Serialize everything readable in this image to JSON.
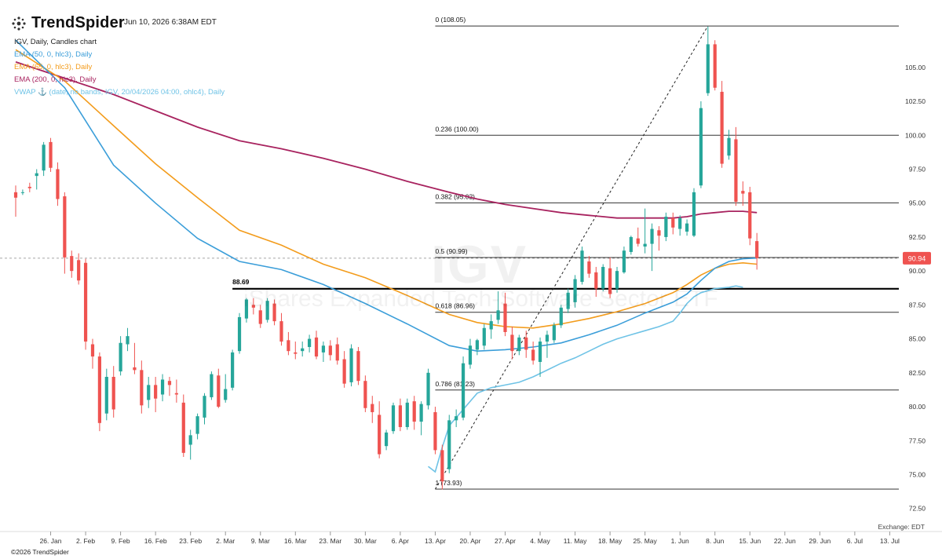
{
  "header": {
    "brand": "TrendSpider",
    "datetime": "Jun 10, 2026 6:38AM EDT"
  },
  "legend": {
    "title": "IGV, Daily, Candles chart",
    "items": [
      {
        "label": "EMA (50, 0, hlc3), Daily",
        "color": "#3b9ed9"
      },
      {
        "label": "EMA (65, 0, hlc3), Daily",
        "color": "#f39c1c"
      },
      {
        "label": "EMA (200, 0, hlc3), Daily",
        "color": "#a8235f"
      },
      {
        "label": "VWAP ⚓ (date, no bands, IGV, 20/04/2026 04:00, ohlc4), Daily",
        "color": "#6fc3e6"
      }
    ]
  },
  "watermark": {
    "ticker": "IGV",
    "name": "iShares Expanded Tech-Software Sector ETF"
  },
  "footer": {
    "copyright": "©2026 TrendSpider",
    "exchange": "Exchange: EDT"
  },
  "colors": {
    "up": "#26a69a",
    "down": "#ef5350",
    "ema50": "#3b9ed9",
    "ema65": "#f39c1c",
    "ema200": "#a8235f",
    "vwap": "#6fc3e6",
    "price_tag": "#ef5350"
  },
  "chart_data": {
    "type": "candlestick",
    "ylim": [
      71.5,
      109.5
    ],
    "y_ticks": [
      72.5,
      75.0,
      77.5,
      80.0,
      82.5,
      85.0,
      87.5,
      90.0,
      92.5,
      95.0,
      97.5,
      100.0,
      102.5,
      105.0
    ],
    "y_tick_labels": [
      "72.50",
      "75.00",
      "77.50",
      "80.00",
      "82.50",
      "85.00",
      "87.50",
      "90.00",
      "92.50",
      "95.00",
      "97.50",
      "100.00",
      "102.50",
      "105.00"
    ],
    "x_ticks": [
      {
        "label": "26. Jan",
        "t": 7
      },
      {
        "label": "2. Feb",
        "t": 12
      },
      {
        "label": "9. Feb",
        "t": 17
      },
      {
        "label": "16. Feb",
        "t": 22
      },
      {
        "label": "23. Feb",
        "t": 27
      },
      {
        "label": "2. Mar",
        "t": 32
      },
      {
        "label": "9. Mar",
        "t": 37
      },
      {
        "label": "16. Mar",
        "t": 42
      },
      {
        "label": "23. Mar",
        "t": 47
      },
      {
        "label": "30. Mar",
        "t": 52
      },
      {
        "label": "6. Apr",
        "t": 57
      },
      {
        "label": "13. Apr",
        "t": 62
      },
      {
        "label": "20. Apr",
        "t": 67
      },
      {
        "label": "27. Apr",
        "t": 72
      },
      {
        "label": "4. May",
        "t": 77
      },
      {
        "label": "11. May",
        "t": 82
      },
      {
        "label": "18. May",
        "t": 87
      },
      {
        "label": "25. May",
        "t": 92
      },
      {
        "label": "1. Jun",
        "t": 97
      },
      {
        "label": "8. Jun",
        "t": 102
      },
      {
        "label": "15. Jun",
        "t": 107
      },
      {
        "label": "22. Jun",
        "t": 112
      },
      {
        "label": "29. Jun",
        "t": 117
      },
      {
        "label": "6. Jul",
        "t": 122
      },
      {
        "label": "13. Jul",
        "t": 127
      }
    ],
    "t_range": [
      2,
      128.3
    ],
    "candles": [
      [
        2,
        95.8,
        96.3,
        94.0,
        95.4
      ],
      [
        3,
        95.8,
        96.0,
        95.6,
        95.8
      ],
      [
        4,
        96.2,
        96.5,
        95.8,
        96.1
      ],
      [
        5,
        97.0,
        97.5,
        96.0,
        97.2
      ],
      [
        6,
        97.4,
        99.5,
        97.0,
        99.3
      ],
      [
        7,
        99.5,
        99.8,
        97.3,
        97.6
      ],
      [
        8,
        97.5,
        98.0,
        94.8,
        95.3
      ],
      [
        9,
        95.5,
        95.8,
        89.8,
        91.0
      ],
      [
        10,
        91.1,
        91.5,
        89.5,
        90.0
      ],
      [
        11,
        90.8,
        91.3,
        89.0,
        89.3
      ],
      [
        12,
        90.6,
        90.9,
        84.2,
        84.8
      ],
      [
        13,
        84.6,
        85.0,
        82.8,
        83.7
      ],
      [
        14,
        83.7,
        84.0,
        78.2,
        78.8
      ],
      [
        15,
        79.5,
        82.8,
        79.0,
        82.2
      ],
      [
        16,
        82.2,
        83.0,
        79.2,
        79.8
      ],
      [
        17,
        82.6,
        85.2,
        82.3,
        84.7
      ],
      [
        18,
        84.6,
        85.8,
        84.1,
        85.2
      ],
      [
        19,
        82.9,
        84.7,
        82.4,
        82.7
      ],
      [
        20,
        82.7,
        83.4,
        79.5,
        80.1
      ],
      [
        21,
        80.5,
        82.2,
        79.9,
        81.6
      ],
      [
        22,
        81.6,
        82.2,
        79.6,
        80.6
      ],
      [
        23,
        80.9,
        82.4,
        80.4,
        82.0
      ],
      [
        24,
        81.9,
        82.2,
        80.8,
        81.6
      ],
      [
        25,
        81.0,
        82.0,
        80.3,
        80.9
      ],
      [
        26,
        80.3,
        80.9,
        76.3,
        76.6
      ],
      [
        27,
        77.2,
        78.3,
        76.1,
        77.9
      ],
      [
        28,
        78.0,
        79.5,
        77.6,
        79.3
      ],
      [
        29,
        79.2,
        81.0,
        78.7,
        80.8
      ],
      [
        30,
        80.7,
        82.6,
        80.5,
        82.4
      ],
      [
        31,
        82.3,
        82.8,
        79.9,
        80.0
      ],
      [
        32,
        80.5,
        82.4,
        80.3,
        81.3
      ],
      [
        33,
        81.4,
        84.2,
        81.2,
        84.0
      ],
      [
        34,
        84.1,
        86.9,
        83.9,
        86.6
      ],
      [
        35,
        86.5,
        88.0,
        86.2,
        87.9
      ],
      [
        36,
        87.5,
        88.0,
        86.8,
        87.3
      ],
      [
        37,
        87.1,
        87.5,
        85.8,
        86.1
      ],
      [
        38,
        86.4,
        88.0,
        86.2,
        87.8
      ],
      [
        39,
        87.6,
        87.9,
        86.0,
        86.3
      ],
      [
        40,
        86.3,
        86.9,
        84.5,
        84.8
      ],
      [
        41,
        84.9,
        85.5,
        83.8,
        84.1
      ],
      [
        42,
        84.0,
        84.8,
        83.5,
        83.9
      ],
      [
        43,
        84.1,
        84.8,
        83.7,
        84.3
      ],
      [
        44,
        84.4,
        85.3,
        84.0,
        85.0
      ],
      [
        45,
        85.1,
        85.6,
        83.5,
        83.7
      ],
      [
        46,
        84.0,
        84.8,
        83.3,
        84.5
      ],
      [
        47,
        84.5,
        84.9,
        83.4,
        83.8
      ],
      [
        48,
        84.6,
        85.1,
        83.1,
        83.4
      ],
      [
        49,
        83.5,
        84.1,
        81.4,
        81.7
      ],
      [
        50,
        81.8,
        84.6,
        81.5,
        84.3
      ],
      [
        51,
        84.1,
        84.4,
        81.6,
        81.9
      ],
      [
        52,
        81.9,
        82.3,
        79.6,
        79.9
      ],
      [
        53,
        80.2,
        80.8,
        78.8,
        79.6
      ],
      [
        54,
        79.4,
        80.4,
        76.2,
        76.5
      ],
      [
        55,
        77.1,
        78.3,
        76.8,
        78.1
      ],
      [
        56,
        78.2,
        80.3,
        78.0,
        80.1
      ],
      [
        57,
        80.1,
        80.6,
        78.2,
        78.5
      ],
      [
        58,
        78.5,
        80.6,
        78.3,
        80.3
      ],
      [
        59,
        80.4,
        80.8,
        78.3,
        78.9
      ],
      [
        60,
        78.9,
        80.4,
        77.9,
        80.2
      ],
      [
        61,
        80.1,
        82.8,
        79.8,
        82.5
      ],
      [
        62,
        79.6,
        80.0,
        76.5,
        76.8
      ],
      [
        63,
        76.8,
        77.2,
        73.9,
        74.5
      ],
      [
        64,
        75.4,
        79.4,
        75.1,
        79.0
      ],
      [
        65,
        79.0,
        79.8,
        78.5,
        79.3
      ],
      [
        66,
        79.2,
        83.7,
        79.0,
        83.2
      ],
      [
        67,
        83.1,
        85.0,
        82.8,
        84.5
      ],
      [
        68,
        84.2,
        85.0,
        83.8,
        84.9
      ],
      [
        69,
        84.5,
        86.1,
        84.2,
        85.8
      ],
      [
        70,
        85.7,
        86.8,
        85.0,
        86.3
      ],
      [
        71,
        86.4,
        88.5,
        86.1,
        87.1
      ],
      [
        72,
        87.6,
        88.4,
        85.2,
        85.5
      ],
      [
        73,
        85.3,
        85.9,
        83.5,
        84.1
      ],
      [
        74,
        84.1,
        85.3,
        83.8,
        85.1
      ],
      [
        75,
        85.1,
        85.6,
        83.6,
        84.2
      ],
      [
        76,
        84.2,
        84.8,
        83.1,
        83.4
      ],
      [
        77,
        83.3,
        85.1,
        82.2,
        84.8
      ],
      [
        78,
        84.8,
        85.6,
        83.6,
        85.3
      ],
      [
        79,
        84.9,
        86.2,
        84.7,
        86.0
      ],
      [
        80,
        86.0,
        87.5,
        85.8,
        87.3
      ],
      [
        81,
        87.2,
        88.7,
        86.9,
        88.4
      ],
      [
        82,
        87.7,
        89.7,
        87.3,
        89.4
      ],
      [
        83,
        89.2,
        91.8,
        89.0,
        91.5
      ],
      [
        84,
        90.7,
        91.1,
        89.5,
        89.8
      ],
      [
        85,
        89.9,
        90.3,
        88.1,
        88.7
      ],
      [
        86,
        88.7,
        90.5,
        88.5,
        90.3
      ],
      [
        87,
        90.2,
        91.0,
        88.0,
        88.3
      ],
      [
        88,
        88.7,
        90.3,
        88.4,
        90.0
      ],
      [
        89,
        89.9,
        91.8,
        89.8,
        91.5
      ],
      [
        90,
        91.4,
        92.6,
        91.2,
        92.5
      ],
      [
        91,
        92.4,
        93.2,
        91.8,
        92.0
      ],
      [
        92,
        91.8,
        94.6,
        91.3,
        92.0
      ],
      [
        93,
        92.0,
        93.5,
        90.0,
        93.1
      ],
      [
        94,
        93.0,
        93.3,
        91.5,
        92.6
      ],
      [
        95,
        92.5,
        94.3,
        92.2,
        94.0
      ],
      [
        96,
        93.9,
        94.3,
        92.7,
        93.2
      ],
      [
        97,
        93.1,
        94.1,
        92.6,
        93.9
      ],
      [
        98,
        92.9,
        93.8,
        92.6,
        93.5
      ],
      [
        99,
        92.6,
        96.1,
        92.5,
        95.8
      ],
      [
        100,
        96.3,
        102.5,
        96.1,
        102.0
      ],
      [
        101,
        103.1,
        108.0,
        102.9,
        106.7
      ],
      [
        102,
        106.7,
        107.0,
        103.3,
        103.5
      ],
      [
        103,
        103.2,
        104.0,
        97.6,
        97.9
      ],
      [
        104,
        98.5,
        100.4,
        98.2,
        99.8
      ],
      [
        105,
        99.7,
        100.6,
        94.8,
        95.1
      ],
      [
        106,
        95.9,
        96.6,
        94.8,
        95.7
      ],
      [
        107,
        95.8,
        96.2,
        91.9,
        92.4
      ],
      [
        108,
        92.2,
        92.8,
        90.1,
        90.94
      ]
    ],
    "ema50": [
      [
        2,
        107.0
      ],
      [
        9,
        103.5
      ],
      [
        16,
        97.8
      ],
      [
        22,
        95.0
      ],
      [
        28,
        92.4
      ],
      [
        34,
        90.7
      ],
      [
        40,
        90.1
      ],
      [
        46,
        89.0
      ],
      [
        52,
        87.6
      ],
      [
        58,
        86.1
      ],
      [
        64,
        84.5
      ],
      [
        68,
        84.1
      ],
      [
        72,
        84.2
      ],
      [
        76,
        84.4
      ],
      [
        80,
        84.7
      ],
      [
        84,
        85.3
      ],
      [
        88,
        86.0
      ],
      [
        92,
        86.9
      ],
      [
        96,
        87.7
      ],
      [
        98,
        88.3
      ],
      [
        100,
        89.3
      ],
      [
        102,
        90.2
      ],
      [
        104,
        90.7
      ],
      [
        106,
        90.9
      ],
      [
        108,
        90.95
      ]
    ],
    "ema65": [
      [
        2,
        106.3
      ],
      [
        9,
        104.0
      ],
      [
        16,
        100.7
      ],
      [
        22,
        97.9
      ],
      [
        28,
        95.4
      ],
      [
        34,
        93.0
      ],
      [
        40,
        91.9
      ],
      [
        46,
        90.5
      ],
      [
        52,
        89.5
      ],
      [
        58,
        88.2
      ],
      [
        64,
        86.8
      ],
      [
        68,
        86.2
      ],
      [
        72,
        85.9
      ],
      [
        76,
        85.8
      ],
      [
        80,
        86.1
      ],
      [
        84,
        86.5
      ],
      [
        88,
        87.0
      ],
      [
        92,
        87.6
      ],
      [
        96,
        88.4
      ],
      [
        98,
        89.0
      ],
      [
        100,
        89.7
      ],
      [
        102,
        90.2
      ],
      [
        104,
        90.5
      ],
      [
        106,
        90.6
      ],
      [
        108,
        90.5
      ]
    ],
    "ema200": [
      [
        2,
        105.4
      ],
      [
        9,
        104.2
      ],
      [
        16,
        103.0
      ],
      [
        22,
        101.8
      ],
      [
        28,
        100.6
      ],
      [
        34,
        99.6
      ],
      [
        40,
        99.0
      ],
      [
        46,
        98.3
      ],
      [
        52,
        97.5
      ],
      [
        58,
        96.6
      ],
      [
        64,
        95.8
      ],
      [
        68,
        95.3
      ],
      [
        72,
        94.9
      ],
      [
        76,
        94.6
      ],
      [
        80,
        94.3
      ],
      [
        84,
        94.1
      ],
      [
        88,
        93.9
      ],
      [
        92,
        93.9
      ],
      [
        96,
        93.9
      ],
      [
        98,
        94.0
      ],
      [
        100,
        94.2
      ],
      [
        102,
        94.3
      ],
      [
        104,
        94.4
      ],
      [
        106,
        94.4
      ],
      [
        108,
        94.3
      ]
    ],
    "vwap": [
      [
        61,
        75.6
      ],
      [
        62,
        75.2
      ],
      [
        63,
        77.0
      ],
      [
        64,
        78.6
      ],
      [
        66,
        79.8
      ],
      [
        68,
        81.0
      ],
      [
        70,
        81.4
      ],
      [
        72,
        81.6
      ],
      [
        74,
        81.8
      ],
      [
        76,
        82.2
      ],
      [
        78,
        82.7
      ],
      [
        80,
        83.2
      ],
      [
        82,
        83.6
      ],
      [
        84,
        84.1
      ],
      [
        86,
        84.6
      ],
      [
        88,
        85.0
      ],
      [
        90,
        85.3
      ],
      [
        92,
        85.6
      ],
      [
        94,
        85.9
      ],
      [
        96,
        86.3
      ],
      [
        97,
        86.9
      ],
      [
        98,
        87.6
      ],
      [
        99,
        88.1
      ],
      [
        100,
        88.4
      ],
      [
        102,
        88.7
      ],
      [
        104,
        88.8
      ],
      [
        105,
        88.9
      ],
      [
        106,
        88.8
      ]
    ],
    "fibonacci": {
      "start_t": 62,
      "levels": [
        {
          "label": "0 (108.05)",
          "value": 108.05
        },
        {
          "label": "0.236 (100.00)",
          "value": 100.0
        },
        {
          "label": "0.382 (95.02)",
          "value": 95.02
        },
        {
          "label": "0.5 (90.99)",
          "value": 90.99
        },
        {
          "label": "0.618 (86.96)",
          "value": 86.96
        },
        {
          "label": "0.786 (81.23)",
          "value": 81.23
        },
        {
          "label": "1 (73.93)",
          "value": 73.93
        }
      ]
    },
    "trendline": {
      "from": [
        62,
        73.93
      ],
      "to": [
        101,
        108.05
      ]
    },
    "horizontal_level": {
      "label": "88.69",
      "value": 88.69,
      "start_t": 33
    },
    "last_price": {
      "label": "90.94",
      "value": 90.94
    }
  }
}
